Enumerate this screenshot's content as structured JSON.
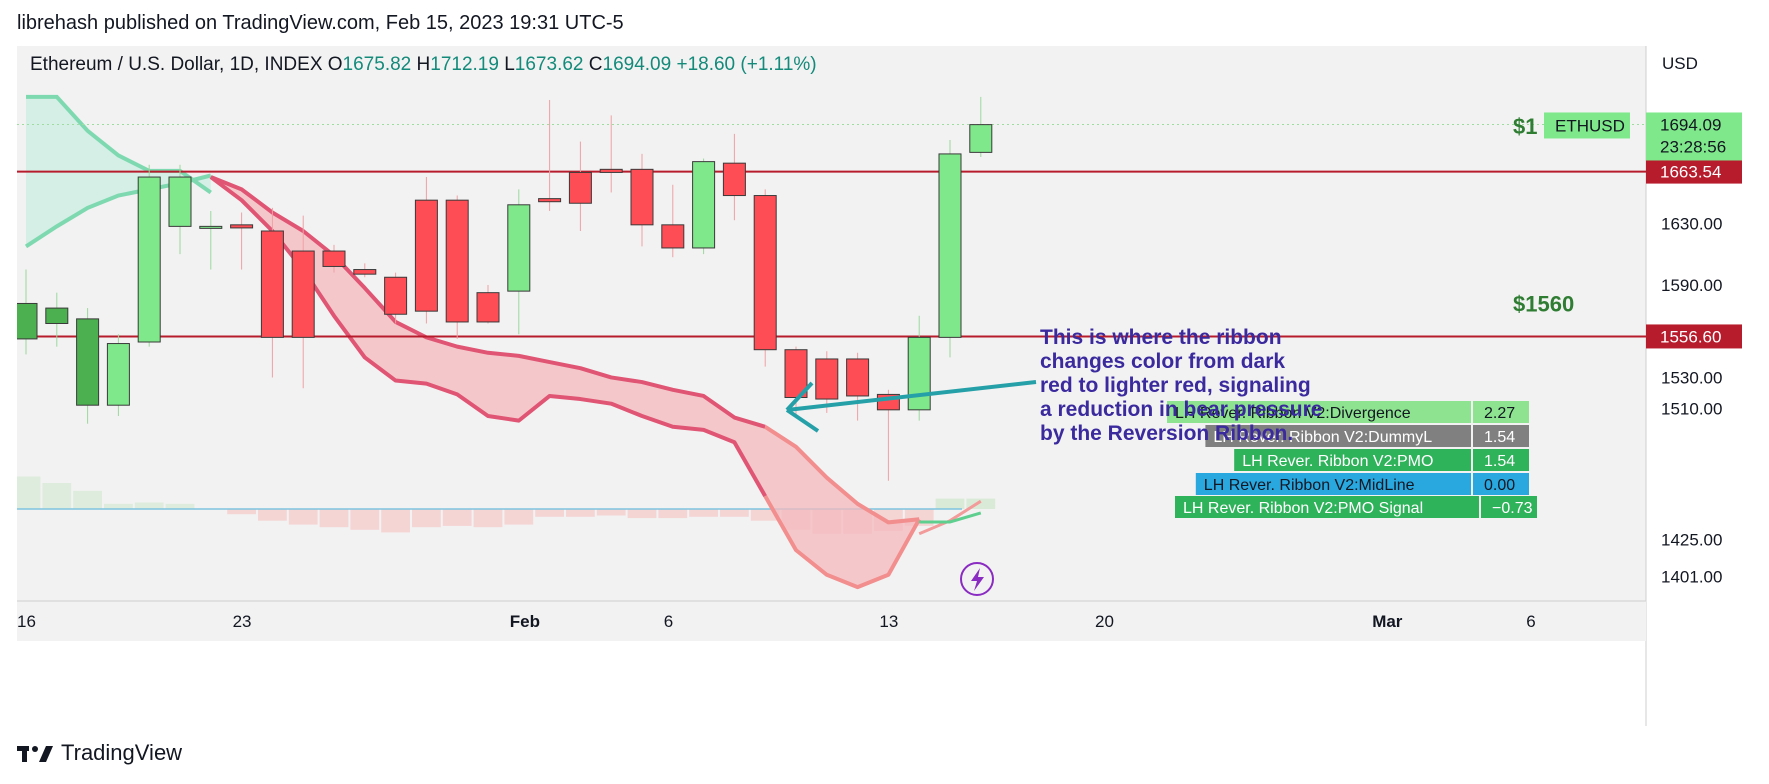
{
  "header": {
    "published": "librehash published on TradingView.com, Feb 15, 2023 19:31 UTC-5"
  },
  "brand": {
    "name": "TradingView"
  },
  "legend": {
    "symbol": "Ethereum / U.S. Dollar, 1D, INDEX",
    "open_label": "O",
    "open": "1675.82",
    "high_label": "H",
    "high": "1712.19",
    "low_label": "L",
    "low": "1673.62",
    "close_label": "C",
    "close": "1694.09",
    "change": "+18.60 (+1.11%)"
  },
  "colors": {
    "bull": "#7fe88a",
    "bull_dark": "#4caf50",
    "bear": "#ff4d55",
    "level_line": "#b71c2c",
    "ribbon_red": "#e05573",
    "ribbon_fill": "#f4b9bd",
    "ribbon_green": "#7ed9b0",
    "annotation": "#3a2a9e",
    "arrow": "#26a0a8",
    "level_label": "#2e7d32",
    "sigline": "#7ec3e0"
  },
  "chart_data": {
    "type": "candlestick",
    "currency": "USD",
    "ylim": [
      1385,
      1745
    ],
    "yticks": [
      "1630.00",
      "1590.00",
      "1530.00",
      "1510.00",
      "1425.00",
      "1401.00"
    ],
    "x_ticks": [
      "16",
      "23",
      "Feb",
      "6",
      "13",
      "20",
      "Mar",
      "6"
    ],
    "candles": [
      {
        "date": "Jan 16",
        "o": 1555,
        "h": 1600,
        "l": 1545,
        "c": 1578,
        "dir": "up"
      },
      {
        "date": "Jan 17",
        "o": 1565,
        "h": 1585,
        "l": 1550,
        "c": 1575,
        "dir": "up"
      },
      {
        "date": "Jan 18",
        "o": 1512,
        "h": 1575,
        "l": 1500,
        "c": 1568,
        "dir": "up"
      },
      {
        "date": "Jan 19",
        "o": 1512,
        "h": 1558,
        "l": 1505,
        "c": 1552,
        "dir": "up"
      },
      {
        "date": "Jan 20",
        "o": 1553,
        "h": 1668,
        "l": 1550,
        "c": 1660,
        "dir": "up"
      },
      {
        "date": "Jan 21",
        "o": 1628,
        "h": 1668,
        "l": 1610,
        "c": 1660,
        "dir": "up"
      },
      {
        "date": "Jan 22",
        "o": 1628,
        "h": 1638,
        "l": 1600,
        "c": 1627,
        "dir": "up"
      },
      {
        "date": "Jan 23",
        "o": 1629,
        "h": 1637,
        "l": 1600,
        "c": 1627,
        "dir": "down"
      },
      {
        "date": "Jan 24",
        "o": 1625,
        "h": 1640,
        "l": 1530,
        "c": 1556,
        "dir": "down"
      },
      {
        "date": "Jan 25",
        "o": 1612,
        "h": 1635,
        "l": 1523,
        "c": 1556,
        "dir": "down"
      },
      {
        "date": "Jan 26",
        "o": 1612,
        "h": 1616,
        "l": 1598,
        "c": 1602,
        "dir": "down"
      },
      {
        "date": "Jan 27",
        "o": 1600,
        "h": 1604,
        "l": 1595,
        "c": 1597,
        "dir": "down"
      },
      {
        "date": "Jan 28",
        "o": 1595,
        "h": 1598,
        "l": 1565,
        "c": 1571,
        "dir": "down"
      },
      {
        "date": "Jan 29",
        "o": 1645,
        "h": 1660,
        "l": 1565,
        "c": 1573,
        "dir": "down"
      },
      {
        "date": "Jan 30",
        "o": 1645,
        "h": 1648,
        "l": 1555,
        "c": 1566,
        "dir": "down"
      },
      {
        "date": "Jan 31",
        "o": 1585,
        "h": 1590,
        "l": 1565,
        "c": 1566,
        "dir": "down"
      },
      {
        "date": "Feb 1",
        "o": 1586,
        "h": 1652,
        "l": 1558,
        "c": 1642,
        "dir": "up"
      },
      {
        "date": "Feb 2",
        "o": 1644,
        "h": 1710,
        "l": 1638,
        "c": 1646,
        "dir": "down"
      },
      {
        "date": "Feb 3",
        "o": 1663,
        "h": 1683,
        "l": 1625,
        "c": 1643,
        "dir": "down"
      },
      {
        "date": "Feb 4",
        "o": 1665,
        "h": 1700,
        "l": 1650,
        "c": 1663,
        "dir": "down"
      },
      {
        "date": "Feb 5",
        "o": 1665,
        "h": 1675,
        "l": 1615,
        "c": 1629,
        "dir": "down"
      },
      {
        "date": "Feb 6",
        "o": 1629,
        "h": 1655,
        "l": 1608,
        "c": 1614,
        "dir": "down"
      },
      {
        "date": "Feb 7",
        "o": 1614,
        "h": 1672,
        "l": 1610,
        "c": 1670,
        "dir": "up"
      },
      {
        "date": "Feb 8",
        "o": 1669,
        "h": 1688,
        "l": 1632,
        "c": 1648,
        "dir": "down"
      },
      {
        "date": "Feb 9",
        "o": 1648,
        "h": 1652,
        "l": 1537,
        "c": 1548,
        "dir": "down"
      },
      {
        "date": "Feb 10",
        "o": 1548,
        "h": 1550,
        "l": 1505,
        "c": 1517,
        "dir": "down"
      },
      {
        "date": "Feb 11",
        "o": 1542,
        "h": 1547,
        "l": 1507,
        "c": 1516,
        "dir": "down"
      },
      {
        "date": "Feb 12",
        "o": 1542,
        "h": 1546,
        "l": 1502,
        "c": 1518,
        "dir": "down"
      },
      {
        "date": "Feb 13",
        "o": 1519,
        "h": 1522,
        "l": 1463,
        "c": 1509,
        "dir": "down"
      },
      {
        "date": "Feb 14",
        "o": 1509,
        "h": 1570,
        "l": 1502,
        "c": 1556,
        "dir": "up"
      },
      {
        "date": "Feb 15",
        "o": 1556,
        "h": 1684,
        "l": 1543,
        "c": 1675,
        "dir": "up"
      },
      {
        "date": "Feb 16",
        "o": 1676,
        "h": 1712,
        "l": 1673,
        "c": 1694,
        "dir": "up"
      }
    ],
    "levels": [
      {
        "price": 1663.54,
        "label": "1663.54"
      },
      {
        "price": 1556.6,
        "label": "1556.60"
      }
    ],
    "level_texts": [
      {
        "text": "$1",
        "price": 1693
      },
      {
        "text": "$1560",
        "price": 1578
      }
    ],
    "last_price": {
      "symbol": "ETHUSD",
      "value": "1694.09",
      "countdown": "23:28:56"
    },
    "ribbon": {
      "upper": [
        1660,
        1652,
        1637,
        1625,
        1609,
        1588,
        1566,
        1556,
        1550,
        1546,
        1544,
        1540,
        1536,
        1530,
        1527,
        1522,
        1518,
        1504,
        1498,
        1485,
        1465,
        1448,
        1436,
        1438
      ],
      "lower": [
        1660,
        1645,
        1625,
        1600,
        1570,
        1543,
        1528,
        1526,
        1519,
        1505,
        1502,
        1518,
        1516,
        1513,
        1505,
        1498,
        1496,
        1488,
        1453,
        1418,
        1402,
        1394,
        1402,
        1438
      ],
      "green_upper": [
        1712,
        1712,
        1690,
        1674,
        1664,
        1664,
        1650
      ],
      "green_lower": [
        1615,
        1628,
        1640,
        1648,
        1652,
        1656,
        1661
      ]
    },
    "indicators": [
      {
        "name": "LH Rever. Ribbon V2:Divergence",
        "value": "2.27",
        "color": "#8de38f",
        "text": "#131722"
      },
      {
        "name": "LH Rever. Ribbon V2:DummyL",
        "value": "1.54",
        "color": "#808080",
        "text": "#ffffff"
      },
      {
        "name": "LH Rever. Ribbon V2:PMO",
        "value": "1.54",
        "color": "#2eb25a",
        "text": "#ffffff"
      },
      {
        "name": "LH Rever. Ribbon V2:MidLine",
        "value": "0.00",
        "color": "#29a8e0",
        "text": "#131722"
      },
      {
        "name": "LH Rever. Ribbon V2:PMO Signal",
        "value": "−0.73",
        "color": "#2eb25a",
        "text": "#ffffff"
      }
    ],
    "histogram": {
      "zero_label": "0",
      "values": [
        2.5,
        2.0,
        1.4,
        0.4,
        0.5,
        0.4,
        0,
        -0.4,
        -0.9,
        -1.2,
        -1.4,
        -1.6,
        -1.8,
        -1.4,
        -1.3,
        -1.4,
        -1.2,
        -0.6,
        -0.6,
        -0.5,
        -0.7,
        -0.7,
        -0.6,
        -0.6,
        -0.9,
        -1.6,
        -1.9,
        -1.9,
        -1.7,
        -1.3,
        0.8,
        0.8
      ]
    },
    "pmo_lines": {
      "pmo": [
        -1.9,
        -0.9,
        0.6
      ],
      "signal": [
        -1.0,
        -1.0,
        -0.3
      ]
    },
    "annotation": "This is where the ribbon changes color from dark red to lighter red, signaling a reduction in bear pressure by the Reversion Ribbon."
  }
}
